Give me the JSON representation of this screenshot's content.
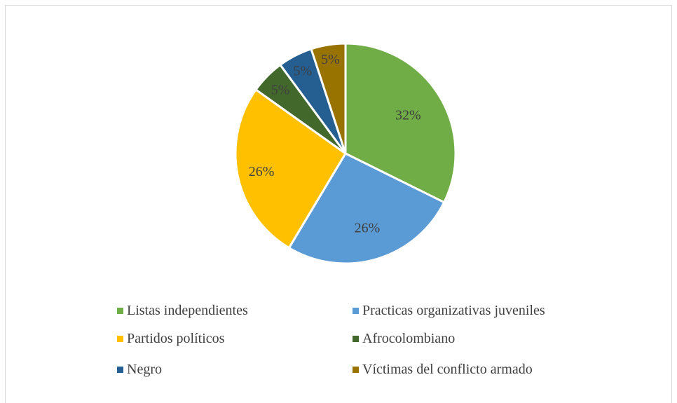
{
  "chart_data": {
    "type": "pie",
    "title": "",
    "start_angle_deg": 0,
    "slices": [
      {
        "name": "Listas independientes",
        "value": 32,
        "label": "32%",
        "color": "#70ad47"
      },
      {
        "name": "Practicas organizativas juveniles",
        "value": 26,
        "label": "26%",
        "color": "#5b9bd5"
      },
      {
        "name": "Partidos políticos",
        "value": 26,
        "label": "26%",
        "color": "#ffc000"
      },
      {
        "name": "Afrocolombiano",
        "value": 5,
        "label": "5%",
        "color": "#43682b"
      },
      {
        "name": "Negro",
        "value": 5,
        "label": "5%",
        "color": "#255e91"
      },
      {
        "name": "Víctimas del conflicto armado",
        "value": 5,
        "label": "5%",
        "color": "#997300"
      }
    ],
    "legend": {
      "position": "bottom",
      "columns": 2
    }
  }
}
